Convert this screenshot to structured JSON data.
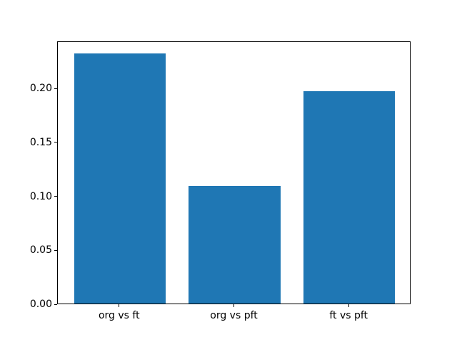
{
  "figure": {
    "background": "#ffffff",
    "axes_edge_color": "#000000",
    "text_color": "#000000"
  },
  "chart_data": {
    "type": "bar",
    "title": "",
    "xlabel": "",
    "ylabel": "",
    "categories": [
      "org vs ft",
      "org vs pft",
      "ft vs pft"
    ],
    "values": [
      0.232,
      0.109,
      0.197
    ],
    "bar_color": "#1f77b4",
    "bar_width": 0.8,
    "xlim": [
      -0.54,
      2.54
    ],
    "ylim": [
      0,
      0.2436
    ],
    "yticks": [
      0,
      0.05,
      0.1,
      0.15,
      0.2
    ],
    "ytick_decimals": 2,
    "grid": false,
    "legend_position": "none"
  }
}
